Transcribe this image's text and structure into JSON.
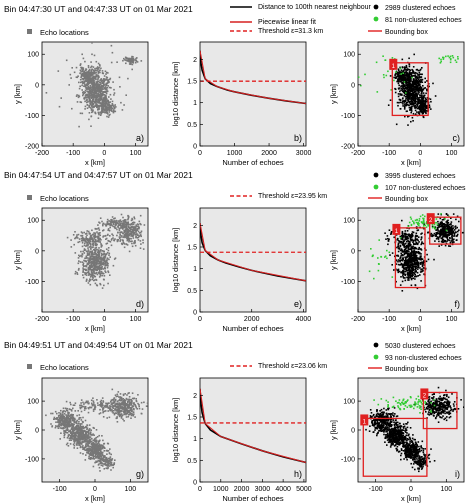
{
  "colors": {
    "panel_bg": "#e8e8e8",
    "echo": "#777777",
    "clustered": "#000000",
    "non_clustered": "#33cc33",
    "fit": "#d62020",
    "threshold": "#e02020",
    "box": "#e02020",
    "distance_curve": "#000000"
  },
  "rows": [
    {
      "header": "Bin 04:47:30 UT and 04:47:33 UT on 01 Mar 2021",
      "echo_legend": "Echo locations",
      "curve_legend": {
        "distance": "Distance to 100th nearest neighbour",
        "fit": "Piecewise linear fit",
        "threshold": "Threshold ε=31.3 km"
      },
      "cluster_legend": {
        "clustered": "2989 clustered echoes",
        "non_clustered": "81 non-clustered echoes",
        "box": "Bounding box"
      },
      "panel_labels": [
        "a)",
        "b)",
        "c)"
      ]
    },
    {
      "header": "Bin 04:47:54 UT and 04:47:57 UT on 01 Mar 2021",
      "echo_legend": "Echo locations",
      "curve_legend": {
        "threshold": "Threshold ε=23.95 km"
      },
      "cluster_legend": {
        "clustered": "3995 clustered echoes",
        "non_clustered": "107 non-clustered echoes",
        "box": "Bounding box"
      },
      "panel_labels": [
        "d)",
        "e)",
        "f)"
      ]
    },
    {
      "header": "Bin 04:49:51 UT and 04:49:54 UT on 01 Mar 2021",
      "echo_legend": "Echo locations",
      "curve_legend": {
        "threshold": "Threshold ε=23.06 km"
      },
      "cluster_legend": {
        "clustered": "5030 clustered echoes",
        "non_clustered": "93 non-clustered echoes",
        "box": "Bounding box"
      },
      "panel_labels": [
        "g)",
        "h)",
        "i)"
      ]
    }
  ],
  "chart_data": [
    {
      "panel": "a)",
      "type": "scatter",
      "xlabel": "x [km]",
      "ylabel": "y [km]",
      "xlim": [
        -200,
        140
      ],
      "ylim": [
        -200,
        140
      ],
      "xticks": [
        -200,
        -100,
        0,
        100
      ],
      "yticks": [
        -200,
        -100,
        0,
        100
      ],
      "series": [
        {
          "name": "Echo locations",
          "color": "#777777",
          "blobs": [
            {
              "cx": -25,
              "cy": -20,
              "sx": 22,
              "sy": 35,
              "n": 650
            },
            {
              "cx": -55,
              "cy": 30,
              "sx": 14,
              "sy": 12,
              "n": 160
            },
            {
              "cx": 8,
              "cy": -70,
              "sx": 12,
              "sy": 14,
              "n": 150
            },
            {
              "cx": 85,
              "cy": 80,
              "sx": 12,
              "sy": 6,
              "n": 70
            },
            {
              "cx": -30,
              "cy": 0,
              "sx": 70,
              "sy": 60,
              "n": 60
            }
          ]
        }
      ]
    },
    {
      "panel": "b)",
      "type": "line",
      "xlabel": "Number of echoes",
      "ylabel": "log10 distance [km]",
      "xlim": [
        0,
        3070
      ],
      "ylim": [
        0,
        2.4
      ],
      "xticks": [
        0,
        1000,
        2000,
        3000
      ],
      "yticks": [
        0,
        0.5,
        1,
        1.5,
        2
      ],
      "threshold_log10": 1.4955,
      "series": [
        {
          "name": "Distance to 100th nearest neighbour",
          "x": [
            0,
            20,
            60,
            150,
            300,
            500,
            800,
            1000,
            1500,
            2000,
            2500,
            3070
          ],
          "y": [
            2.2,
            1.95,
            1.75,
            1.55,
            1.44,
            1.37,
            1.29,
            1.25,
            1.17,
            1.1,
            1.04,
            0.98
          ]
        },
        {
          "name": "Piecewise linear fit",
          "x": [
            0,
            150,
            500,
            1000,
            2000,
            3070
          ],
          "y": [
            2.2,
            1.55,
            1.37,
            1.25,
            1.1,
            0.98
          ]
        }
      ]
    },
    {
      "panel": "c)",
      "type": "scatter",
      "xlabel": "x [km]",
      "ylabel": "y [km]",
      "xlim": [
        -200,
        140
      ],
      "ylim": [
        -200,
        140
      ],
      "xticks": [
        -200,
        -100,
        0,
        100
      ],
      "yticks": [
        -200,
        -100,
        0,
        100
      ],
      "series": [
        {
          "name": "2989 clustered echoes",
          "color": "#000000",
          "blobs": [
            {
              "cx": -25,
              "cy": -20,
              "sx": 22,
              "sy": 35,
              "n": 650
            },
            {
              "cx": -55,
              "cy": 30,
              "sx": 14,
              "sy": 12,
              "n": 160
            },
            {
              "cx": 8,
              "cy": -70,
              "sx": 12,
              "sy": 14,
              "n": 150
            }
          ]
        },
        {
          "name": "81 non-clustered echoes",
          "color": "#33cc33",
          "blobs": [
            {
              "cx": -110,
              "cy": 40,
              "sx": 40,
              "sy": 30,
              "n": 25
            },
            {
              "cx": 90,
              "cy": 85,
              "sx": 15,
              "sy": 8,
              "n": 20
            }
          ]
        }
      ],
      "boxes": [
        {
          "label": "1",
          "x0": -90,
          "x1": 25,
          "y0": -100,
          "y1": 72
        }
      ]
    },
    {
      "panel": "d)",
      "type": "scatter",
      "xlabel": "x [km]",
      "ylabel": "y [km]",
      "xlim": [
        -200,
        140
      ],
      "ylim": [
        -200,
        140
      ],
      "xticks": [
        -200,
        -100,
        0,
        100
      ],
      "yticks": [
        -100,
        0,
        100
      ],
      "series": [
        {
          "name": "Echo locations",
          "color": "#777777",
          "blobs": [
            {
              "cx": -30,
              "cy": -40,
              "sx": 22,
              "sy": 30,
              "n": 520
            },
            {
              "cx": -40,
              "cy": 40,
              "sx": 30,
              "sy": 18,
              "n": 180
            },
            {
              "cx": 80,
              "cy": 65,
              "sx": 22,
              "sy": 22,
              "n": 300
            },
            {
              "cx": 30,
              "cy": 90,
              "sx": 20,
              "sy": 8,
              "n": 90
            }
          ]
        }
      ]
    },
    {
      "panel": "e)",
      "type": "line",
      "xlabel": "Number of echoes",
      "ylabel": "log10 distance [km]",
      "xlim": [
        0,
        4100
      ],
      "ylim": [
        0,
        2.4
      ],
      "xticks": [
        0,
        2000,
        4000
      ],
      "yticks": [
        0,
        0.5,
        1,
        1.5,
        2
      ],
      "threshold_log10": 1.3793,
      "series": [
        {
          "name": "Distance to 100th nearest neighbour",
          "x": [
            0,
            30,
            80,
            200,
            400,
            700,
            1000,
            1500,
            2000,
            3000,
            4100
          ],
          "y": [
            2.05,
            1.8,
            1.6,
            1.42,
            1.3,
            1.2,
            1.13,
            1.04,
            0.96,
            0.83,
            0.72
          ]
        },
        {
          "name": "Piecewise linear fit",
          "x": [
            0,
            200,
            700,
            2000,
            4100
          ],
          "y": [
            2.05,
            1.42,
            1.2,
            0.96,
            0.72
          ]
        }
      ]
    },
    {
      "panel": "f)",
      "type": "scatter",
      "xlabel": "x [km]",
      "ylabel": "y [km]",
      "xlim": [
        -200,
        140
      ],
      "ylim": [
        -200,
        140
      ],
      "xticks": [
        -200,
        -100,
        0,
        100
      ],
      "yticks": [
        -100,
        0,
        100
      ],
      "series": [
        {
          "name": "3995 clustered echoes",
          "color": "#000000",
          "blobs": [
            {
              "cx": -30,
              "cy": -40,
              "sx": 22,
              "sy": 30,
              "n": 520
            },
            {
              "cx": -40,
              "cy": 40,
              "sx": 30,
              "sy": 18,
              "n": 180
            },
            {
              "cx": 80,
              "cy": 65,
              "sx": 20,
              "sy": 20,
              "n": 300
            }
          ]
        },
        {
          "name": "107 non-clustered echoes",
          "color": "#33cc33",
          "blobs": [
            {
              "cx": 20,
              "cy": 95,
              "sx": 25,
              "sy": 10,
              "n": 70
            },
            {
              "cx": -120,
              "cy": -20,
              "sx": 30,
              "sy": 40,
              "n": 20
            }
          ]
        }
      ],
      "boxes": [
        {
          "label": "1",
          "x0": -80,
          "x1": 15,
          "y0": -120,
          "y1": 75
        },
        {
          "label": "2",
          "x0": 30,
          "x1": 130,
          "y0": 22,
          "y1": 110
        }
      ]
    },
    {
      "panel": "g)",
      "type": "scatter",
      "xlabel": "x [km]",
      "ylabel": "y [km]",
      "xlim": [
        -150,
        150
      ],
      "ylim": [
        -180,
        180
      ],
      "xticks": [
        -100,
        0,
        100
      ],
      "yticks": [
        -100,
        0,
        100
      ],
      "series": [
        {
          "name": "Echo locations",
          "color": "#777777",
          "blobs": [
            {
              "cx": -80,
              "cy": 30,
              "sx": 18,
              "sy": 20,
              "n": 300
            },
            {
              "cx": -40,
              "cy": -20,
              "sx": 18,
              "sy": 18,
              "n": 380
            },
            {
              "cx": 0,
              "cy": -70,
              "sx": 15,
              "sy": 16,
              "n": 300
            },
            {
              "cx": 30,
              "cy": -110,
              "sx": 12,
              "sy": 12,
              "n": 120
            },
            {
              "cx": 80,
              "cy": 80,
              "sx": 20,
              "sy": 20,
              "n": 330
            },
            {
              "cx": 0,
              "cy": 85,
              "sx": 30,
              "sy": 12,
              "n": 110
            }
          ]
        }
      ]
    },
    {
      "panel": "h)",
      "type": "line",
      "xlabel": "Number of echoes",
      "ylabel": "log10 distance [km]",
      "xlim": [
        0,
        5100
      ],
      "ylim": [
        0,
        2.4
      ],
      "xticks": [
        0,
        1000,
        2000,
        3000,
        4000,
        5000
      ],
      "yticks": [
        0,
        0.5,
        1,
        1.5,
        2
      ],
      "threshold_log10": 1.3628,
      "series": [
        {
          "name": "Distance to 100th nearest neighbour",
          "x": [
            0,
            40,
            100,
            250,
            500,
            1000,
            2000,
            3000,
            4000,
            5100
          ],
          "y": [
            2.15,
            1.85,
            1.6,
            1.35,
            1.2,
            1.05,
            0.88,
            0.72,
            0.58,
            0.45
          ]
        },
        {
          "name": "Piecewise linear fit",
          "x": [
            0,
            250,
            1000,
            3000,
            5100
          ],
          "y": [
            2.15,
            1.35,
            1.05,
            0.72,
            0.45
          ]
        }
      ]
    },
    {
      "panel": "i)",
      "type": "scatter",
      "xlabel": "x [km]",
      "ylabel": "y [km]",
      "xlim": [
        -150,
        150
      ],
      "ylim": [
        -180,
        180
      ],
      "xticks": [
        -100,
        0,
        100
      ],
      "yticks": [
        -100,
        0,
        100
      ],
      "series": [
        {
          "name": "5030 clustered echoes",
          "color": "#000000",
          "blobs": [
            {
              "cx": -80,
              "cy": 30,
              "sx": 18,
              "sy": 20,
              "n": 300
            },
            {
              "cx": -40,
              "cy": -20,
              "sx": 18,
              "sy": 18,
              "n": 380
            },
            {
              "cx": 0,
              "cy": -70,
              "sx": 15,
              "sy": 16,
              "n": 300
            },
            {
              "cx": 30,
              "cy": -110,
              "sx": 12,
              "sy": 12,
              "n": 120
            },
            {
              "cx": 80,
              "cy": 80,
              "sx": 20,
              "sy": 20,
              "n": 330
            }
          ]
        },
        {
          "name": "93 non-clustered echoes",
          "color": "#33cc33",
          "blobs": [
            {
              "cx": -10,
              "cy": 90,
              "sx": 35,
              "sy": 12,
              "n": 80
            }
          ]
        }
      ],
      "boxes": [
        {
          "label": "1",
          "x0": -135,
          "x1": 45,
          "y0": -160,
          "y1": 40
        },
        {
          "label": "2",
          "x0": 35,
          "x1": 130,
          "y0": 5,
          "y1": 130
        }
      ]
    }
  ]
}
